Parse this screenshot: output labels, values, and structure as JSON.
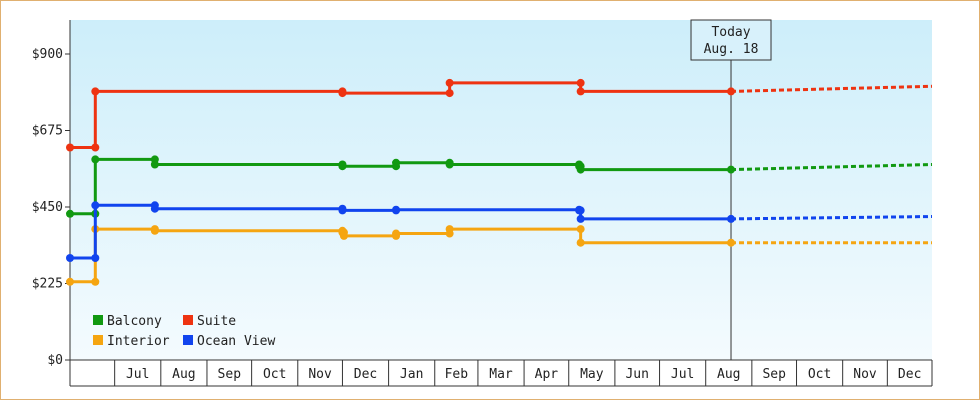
{
  "chart_data": {
    "type": "line",
    "ylim": [
      0,
      1000
    ],
    "y_ticks": [
      0,
      225,
      450,
      675,
      900
    ],
    "y_tick_labels": [
      "$0",
      "$225",
      "$450",
      "$675",
      "$900"
    ],
    "x_range": [
      "2023-06-01",
      "2024-12-31"
    ],
    "x_tick_labels": [
      {
        "label": "Jul",
        "date": "2023-07-01"
      },
      {
        "label": "Aug",
        "date": "2023-08-01"
      },
      {
        "label": "Sep",
        "date": "2023-09-01"
      },
      {
        "label": "Oct",
        "date": "2023-10-01"
      },
      {
        "label": "Nov",
        "date": "2023-11-01"
      },
      {
        "label": "Dec",
        "date": "2023-12-01"
      },
      {
        "label": "Jan",
        "date": "2024-01-01"
      },
      {
        "label": "Feb",
        "date": "2024-02-01"
      },
      {
        "label": "Mar",
        "date": "2024-03-01"
      },
      {
        "label": "Apr",
        "date": "2024-04-01"
      },
      {
        "label": "May",
        "date": "2024-05-01"
      },
      {
        "label": "Jun",
        "date": "2024-06-01"
      },
      {
        "label": "Jul",
        "date": "2024-07-01"
      },
      {
        "label": "Aug",
        "date": "2024-08-01"
      },
      {
        "label": "Sep",
        "date": "2024-09-01"
      },
      {
        "label": "Oct",
        "date": "2024-10-01"
      },
      {
        "label": "Nov",
        "date": "2024-11-01"
      },
      {
        "label": "Dec",
        "date": "2024-12-01"
      }
    ],
    "today": {
      "line1": "Today",
      "line2": "Aug. 18",
      "date": "2024-08-18"
    },
    "grid": false,
    "legend_position": "bottom-left",
    "background_gradient": [
      "#cdeefa",
      "#f4fbfe"
    ],
    "series": [
      {
        "name": "Balcony",
        "color": "#119911",
        "history": [
          [
            "2023-06-01",
            430
          ],
          [
            "2023-06-17",
            430
          ],
          [
            "2023-06-18",
            590
          ],
          [
            "2023-07-27",
            590
          ],
          [
            "2023-07-28",
            575
          ],
          [
            "2023-12-01",
            570
          ],
          [
            "2024-01-05",
            570
          ],
          [
            "2024-01-06",
            580
          ],
          [
            "2024-02-10",
            580
          ],
          [
            "2024-02-11",
            575
          ],
          [
            "2024-05-08",
            570
          ],
          [
            "2024-05-09",
            560
          ],
          [
            "2024-05-21",
            560
          ],
          [
            "2024-08-18",
            560
          ]
        ],
        "forecast": [
          [
            "2024-08-18",
            560
          ],
          [
            "2024-12-31",
            575
          ]
        ]
      },
      {
        "name": "Suite",
        "color": "#ee3311",
        "history": [
          [
            "2023-06-01",
            625
          ],
          [
            "2023-06-17",
            625
          ],
          [
            "2023-06-18",
            790
          ],
          [
            "2023-12-01",
            785
          ],
          [
            "2024-01-05",
            785
          ],
          [
            "2024-02-10",
            785
          ],
          [
            "2024-02-11",
            815
          ],
          [
            "2024-05-08",
            815
          ],
          [
            "2024-05-09",
            790
          ],
          [
            "2024-05-21",
            790
          ],
          [
            "2024-08-18",
            790
          ]
        ],
        "forecast": [
          [
            "2024-08-18",
            790
          ],
          [
            "2024-12-31",
            805
          ]
        ]
      },
      {
        "name": "Interior",
        "color": "#f5a511",
        "history": [
          [
            "2023-06-01",
            230
          ],
          [
            "2023-06-17",
            230
          ],
          [
            "2023-06-18",
            385
          ],
          [
            "2023-07-27",
            385
          ],
          [
            "2023-07-28",
            380
          ],
          [
            "2023-12-01",
            375
          ],
          [
            "2023-12-02",
            365
          ],
          [
            "2024-01-05",
            365
          ],
          [
            "2024-01-06",
            372
          ],
          [
            "2024-02-10",
            372
          ],
          [
            "2024-02-11",
            385
          ],
          [
            "2024-05-08",
            385
          ],
          [
            "2024-05-09",
            345
          ],
          [
            "2024-08-18",
            345
          ]
        ],
        "forecast": [
          [
            "2024-08-18",
            345
          ],
          [
            "2024-12-31",
            345
          ]
        ]
      },
      {
        "name": "Ocean View",
        "color": "#1144ee",
        "history": [
          [
            "2023-06-01",
            300
          ],
          [
            "2023-06-17",
            300
          ],
          [
            "2023-06-18",
            455
          ],
          [
            "2023-07-27",
            455
          ],
          [
            "2023-07-28",
            445
          ],
          [
            "2023-12-01",
            440
          ],
          [
            "2024-01-05",
            440
          ],
          [
            "2024-01-06",
            442
          ],
          [
            "2024-02-10",
            442
          ],
          [
            "2024-05-08",
            440
          ],
          [
            "2024-05-09",
            415
          ],
          [
            "2024-05-21",
            415
          ],
          [
            "2024-08-18",
            415
          ]
        ],
        "forecast": [
          [
            "2024-08-18",
            415
          ],
          [
            "2024-12-31",
            422
          ]
        ]
      }
    ]
  },
  "legend": {
    "items": [
      {
        "label": "Balcony",
        "color": "#119911"
      },
      {
        "label": "Suite",
        "color": "#ee3311"
      },
      {
        "label": "Interior",
        "color": "#f5a511"
      },
      {
        "label": "Ocean View",
        "color": "#1144ee"
      }
    ]
  }
}
